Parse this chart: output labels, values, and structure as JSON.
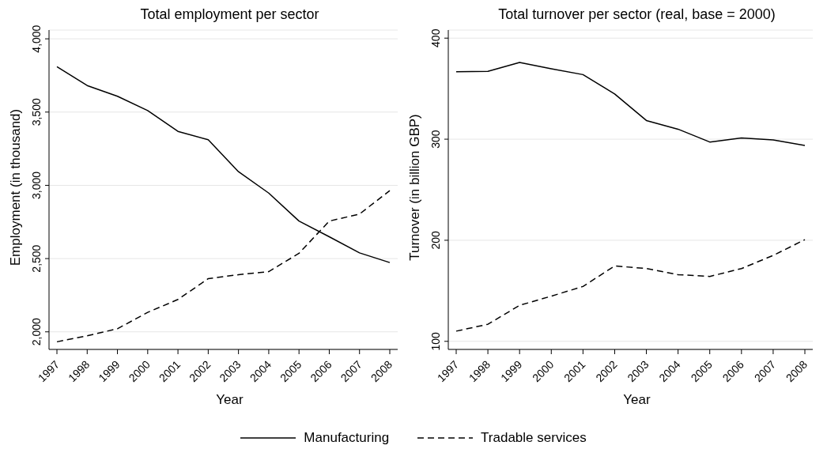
{
  "chart_data": [
    {
      "type": "line",
      "title": "Total employment per sector",
      "xlabel": "Year",
      "ylabel": "Employment (in thousand)",
      "categories": [
        "1997",
        "1998",
        "1999",
        "2000",
        "2001",
        "2002",
        "2003",
        "2004",
        "2005",
        "2006",
        "2007",
        "2008"
      ],
      "series": [
        {
          "name": "Manufacturing",
          "color": "#000000",
          "line_style": "solid",
          "values": [
            3810,
            3681,
            3608,
            3510,
            3368,
            3311,
            3093,
            2947,
            2756,
            2649,
            2539,
            2473
          ]
        },
        {
          "name": "Tradable services",
          "color": "#000000",
          "line_style": "dashed",
          "values": [
            1932,
            1973,
            2021,
            2133,
            2221,
            2363,
            2390,
            2411,
            2536,
            2756,
            2804,
            2964
          ]
        }
      ],
      "ylim": [
        1880,
        4060
      ],
      "yticks": [
        {
          "value": 2000,
          "label": "2,000"
        },
        {
          "value": 2500,
          "label": "2,500"
        },
        {
          "value": 3000,
          "label": "3,000"
        },
        {
          "value": 3500,
          "label": "3,500"
        },
        {
          "value": 4000,
          "label": "4,000"
        }
      ],
      "grid": "y",
      "legend": "bottom"
    },
    {
      "type": "line",
      "title": "Total turnover per sector (real, base = 2000)",
      "xlabel": "Year",
      "ylabel": "Turnover (in billion GBP)",
      "categories": [
        "1997",
        "1998",
        "1999",
        "2000",
        "2001",
        "2002",
        "2003",
        "2004",
        "2005",
        "2006",
        "2007",
        "2008"
      ],
      "series": [
        {
          "color": "#000000",
          "line_style": "solid",
          "values": [
            366.7,
            367.2,
            376,
            369.6,
            363.9,
            344.7,
            318.5,
            309.9,
            297.2,
            301.3,
            299.2,
            293.8
          ]
        },
        {
          "color": "#000000",
          "line_style": "dashed",
          "values": [
            110.1,
            116.9,
            135.6,
            144.7,
            154.3,
            174.6,
            172,
            166,
            164.2,
            172,
            185,
            200.6
          ]
        }
      ],
      "ylim": [
        92,
        408
      ],
      "yticks": [
        100,
        200,
        300,
        400
      ],
      "grid": "y"
    }
  ]
}
